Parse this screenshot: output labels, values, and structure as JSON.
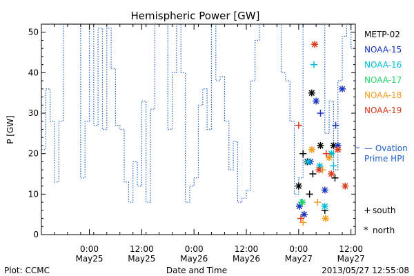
{
  "chart_data": {
    "type": "scatter",
    "title": "Hemispheric Power [GW]",
    "xlabel": "Date and Time",
    "ylabel": "P [GW]",
    "ylim": [
      0,
      52
    ],
    "yticks": [
      0,
      10,
      20,
      30,
      40,
      50
    ],
    "xlim": [
      "2013-05-24 13:00",
      "2013-05-27 13:00"
    ],
    "xticks": [
      {
        "time": "2013-05-25 00:00",
        "line1": "0:00",
        "line2": "May25"
      },
      {
        "time": "2013-05-25 12:00",
        "line1": "12:00",
        "line2": "May25"
      },
      {
        "time": "2013-05-26 00:00",
        "line1": "0:00",
        "line2": "May26"
      },
      {
        "time": "2013-05-26 12:00",
        "line1": "12:00",
        "line2": "May26"
      },
      {
        "time": "2013-05-27 00:00",
        "line1": "0:00",
        "line2": "May27"
      },
      {
        "time": "2013-05-27 12:00",
        "line1": "12:00",
        "line2": "May27"
      }
    ],
    "grid": false,
    "legend_position": "right",
    "ovation": {
      "label": "— Ovation Prime HPI",
      "label_line1": "— Ovation",
      "label_line2": "Prime HPI",
      "color": "#1f5fc8",
      "reference_value": 21.5,
      "steps": [
        [
          "2013-05-24 13:00",
          21
        ],
        [
          "2013-05-24 14:00",
          36
        ],
        [
          "2013-05-24 15:00",
          28
        ],
        [
          "2013-05-24 16:00",
          13
        ],
        [
          "2013-05-24 17:00",
          28
        ],
        [
          "2013-05-24 18:00",
          52
        ],
        [
          "2013-05-24 21:00",
          52
        ],
        [
          "2013-05-24 22:00",
          14
        ],
        [
          "2013-05-24 23:00",
          28
        ],
        [
          "2013-05-25 00:00",
          52
        ],
        [
          "2013-05-25 01:00",
          27
        ],
        [
          "2013-05-25 02:00",
          51
        ],
        [
          "2013-05-25 03:00",
          26
        ],
        [
          "2013-05-25 04:00",
          51
        ],
        [
          "2013-05-25 05:00",
          41
        ],
        [
          "2013-05-25 06:00",
          27
        ],
        [
          "2013-05-25 07:00",
          26
        ],
        [
          "2013-05-25 08:00",
          13
        ],
        [
          "2013-05-25 09:00",
          8
        ],
        [
          "2013-05-25 10:00",
          18
        ],
        [
          "2013-05-25 11:00",
          12
        ],
        [
          "2013-05-25 12:00",
          33
        ],
        [
          "2013-05-25 13:00",
          8
        ],
        [
          "2013-05-25 14:00",
          31
        ],
        [
          "2013-05-25 15:00",
          52
        ],
        [
          "2013-05-25 17:00",
          52
        ],
        [
          "2013-05-25 18:00",
          26
        ],
        [
          "2013-05-25 19:00",
          40
        ],
        [
          "2013-05-25 20:00",
          52
        ],
        [
          "2013-05-25 21:00",
          40
        ],
        [
          "2013-05-25 22:00",
          8
        ],
        [
          "2013-05-25 23:00",
          12
        ],
        [
          "2013-05-26 00:00",
          14
        ],
        [
          "2013-05-26 01:00",
          32
        ],
        [
          "2013-05-26 02:00",
          36
        ],
        [
          "2013-05-26 03:00",
          26
        ],
        [
          "2013-05-26 04:00",
          52
        ],
        [
          "2013-05-26 05:00",
          38
        ],
        [
          "2013-05-26 06:00",
          39
        ],
        [
          "2013-05-26 07:00",
          28
        ],
        [
          "2013-05-26 08:00",
          16
        ],
        [
          "2013-05-26 09:00",
          23
        ],
        [
          "2013-05-26 10:00",
          8
        ],
        [
          "2013-05-26 11:00",
          9
        ],
        [
          "2013-05-26 12:00",
          11
        ],
        [
          "2013-05-26 13:00",
          38
        ],
        [
          "2013-05-26 14:00",
          48
        ],
        [
          "2013-05-26 15:00",
          52
        ],
        [
          "2013-05-26 20:00",
          40
        ],
        [
          "2013-05-26 21:00",
          38
        ],
        [
          "2013-05-26 22:00",
          28
        ],
        [
          "2013-05-26 23:00",
          10
        ],
        [
          "2013-05-27 00:00",
          14
        ],
        [
          "2013-05-27 01:00",
          52
        ],
        [
          "2013-05-27 06:00",
          25
        ],
        [
          "2013-05-27 07:00",
          33
        ],
        [
          "2013-05-27 08:00",
          16
        ],
        [
          "2013-05-27 09:00",
          38
        ],
        [
          "2013-05-27 10:00",
          49
        ],
        [
          "2013-05-27 11:00",
          52
        ],
        [
          "2013-05-27 12:00",
          46
        ]
      ]
    },
    "series": [
      {
        "name": "METP-02",
        "color": "#000000",
        "points": [
          {
            "t": "2013-05-27 00:00",
            "v": 12,
            "s": "north"
          },
          {
            "t": "2013-05-27 01:00",
            "v": 20,
            "s": "south"
          },
          {
            "t": "2013-05-27 02:00",
            "v": 18,
            "s": "north"
          },
          {
            "t": "2013-05-27 03:00",
            "v": 35,
            "s": "north"
          },
          {
            "t": "2013-05-27 03:15",
            "v": 15,
            "s": "south"
          },
          {
            "t": "2013-05-27 05:00",
            "v": 22,
            "s": "north"
          },
          {
            "t": "2013-05-27 06:00",
            "v": 6,
            "s": "south"
          },
          {
            "t": "2013-05-27 08:00",
            "v": 22,
            "s": "north"
          },
          {
            "t": "2013-05-27 08:20",
            "v": 14,
            "s": "south"
          },
          {
            "t": "2013-05-27 02:30",
            "v": 10,
            "s": "south"
          }
        ]
      },
      {
        "name": "NOAA-15",
        "color": "#1a34c0",
        "points": [
          {
            "t": "2013-05-27 00:10",
            "v": 7,
            "s": "north"
          },
          {
            "t": "2013-05-27 01:15",
            "v": 5,
            "s": "north"
          },
          {
            "t": "2013-05-27 02:40",
            "v": 18,
            "s": "north"
          },
          {
            "t": "2013-05-27 04:00",
            "v": 33,
            "s": "north"
          },
          {
            "t": "2013-05-27 05:00",
            "v": 30,
            "s": "south"
          },
          {
            "t": "2013-05-27 06:00",
            "v": 11,
            "s": "north"
          },
          {
            "t": "2013-05-27 08:30",
            "v": 27,
            "s": "south"
          },
          {
            "t": "2013-05-27 09:00",
            "v": 22,
            "s": "north"
          },
          {
            "t": "2013-05-27 10:00",
            "v": 36,
            "s": "north"
          }
        ]
      },
      {
        "name": "NOAA-16",
        "color": "#00bcd4",
        "points": [
          {
            "t": "2013-05-27 00:35",
            "v": 8,
            "s": "south"
          },
          {
            "t": "2013-05-27 02:10",
            "v": 18,
            "s": "north"
          },
          {
            "t": "2013-05-27 03:30",
            "v": 42,
            "s": "south"
          },
          {
            "t": "2013-05-27 04:50",
            "v": 17,
            "s": "north"
          },
          {
            "t": "2013-05-27 06:00",
            "v": 7,
            "s": "north"
          },
          {
            "t": "2013-05-27 07:30",
            "v": 20,
            "s": "north"
          },
          {
            "t": "2013-05-27 08:00",
            "v": 17,
            "s": "south"
          }
        ]
      },
      {
        "name": "NOAA-17",
        "color": "#22d36a",
        "points": [
          {
            "t": "2013-05-27 00:50",
            "v": 8,
            "s": "north"
          }
        ]
      },
      {
        "name": "NOAA-18",
        "color": "#f39c1e",
        "points": [
          {
            "t": "2013-05-27 01:00",
            "v": 3,
            "s": "south"
          },
          {
            "t": "2013-05-27 03:00",
            "v": 21,
            "s": "north"
          },
          {
            "t": "2013-05-27 04:20",
            "v": 8,
            "s": "south"
          },
          {
            "t": "2013-05-27 05:30",
            "v": 16,
            "s": "south"
          },
          {
            "t": "2013-05-27 06:10",
            "v": 4,
            "s": "north"
          },
          {
            "t": "2013-05-27 07:00",
            "v": 19,
            "s": "north"
          }
        ]
      },
      {
        "name": "NOAA-19",
        "color": "#d83a1a",
        "points": [
          {
            "t": "2013-05-27 00:00",
            "v": 27,
            "s": "south"
          },
          {
            "t": "2013-05-27 00:30",
            "v": 4,
            "s": "south"
          },
          {
            "t": "2013-05-27 03:40",
            "v": 47,
            "s": "north"
          },
          {
            "t": "2013-05-27 04:40",
            "v": 16,
            "s": "north"
          },
          {
            "t": "2013-05-27 06:20",
            "v": 20,
            "s": "south"
          },
          {
            "t": "2013-05-27 07:30",
            "v": 15,
            "s": "north"
          },
          {
            "t": "2013-05-27 09:00",
            "v": 21,
            "s": "north"
          },
          {
            "t": "2013-05-27 10:40",
            "v": 12,
            "s": "north"
          }
        ]
      }
    ],
    "symbol_legend": [
      {
        "symbol": "+",
        "label": "south"
      },
      {
        "symbol": "*",
        "label": "north"
      }
    ]
  },
  "footer": {
    "plot_credit": "Plot: CCMC",
    "timestamp": "2013/05/27 12:55:08"
  }
}
